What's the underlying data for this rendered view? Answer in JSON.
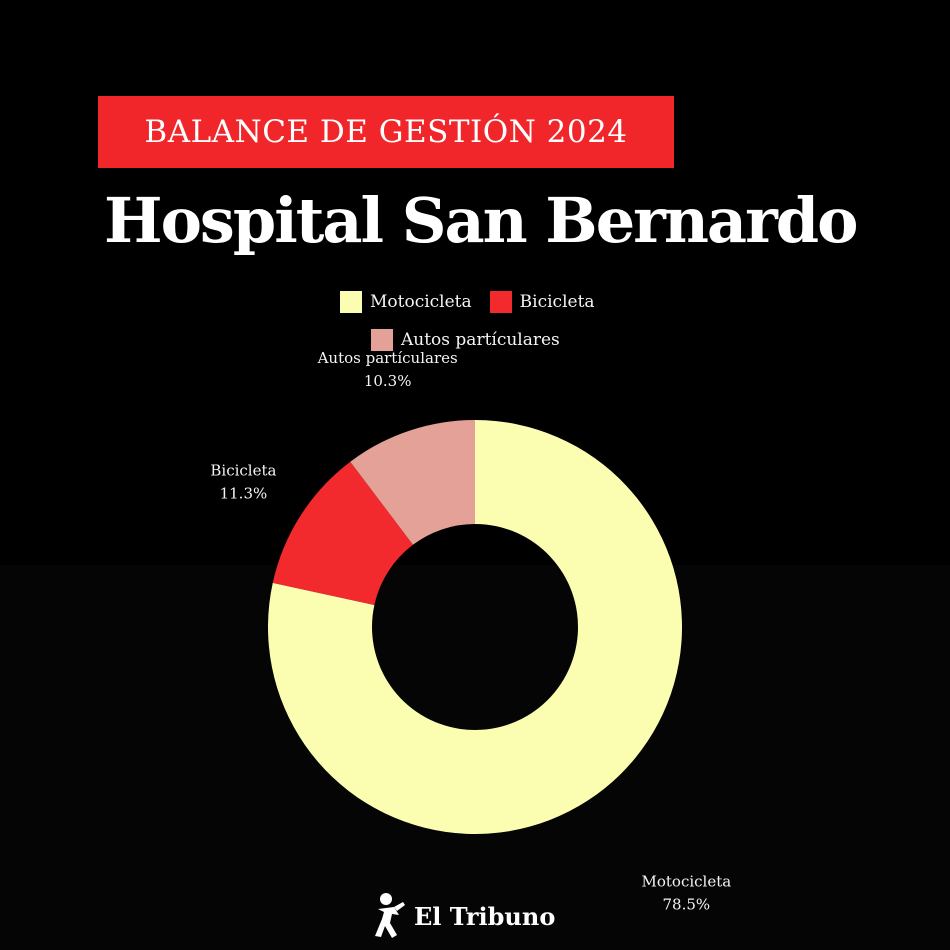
{
  "header": {
    "kicker": "BALANCE DE GESTIÓN 2024",
    "title": "Hospital San Bernardo"
  },
  "colors": {
    "accent": "#f0262a",
    "motocicleta": "#fbfdb0",
    "bicicleta": "#f22a2e",
    "autos": "#e3a197",
    "background": "#000000"
  },
  "chart_data": {
    "type": "pie",
    "variant": "donut",
    "categories": [
      "Motocicleta",
      "Bicicleta",
      "Autos partículares"
    ],
    "values": [
      78.5,
      11.3,
      10.3
    ],
    "value_labels": [
      "78.5%",
      "11.3%",
      "10.3%"
    ],
    "legend": [
      "Motocicleta",
      "Bicicleta",
      "Autos partículares"
    ],
    "legend_position": "top",
    "title": "",
    "start": "12 o'clock",
    "direction": "clockwise"
  },
  "brand": {
    "name": "El Tribuno",
    "icon": "runner-logo-icon"
  }
}
